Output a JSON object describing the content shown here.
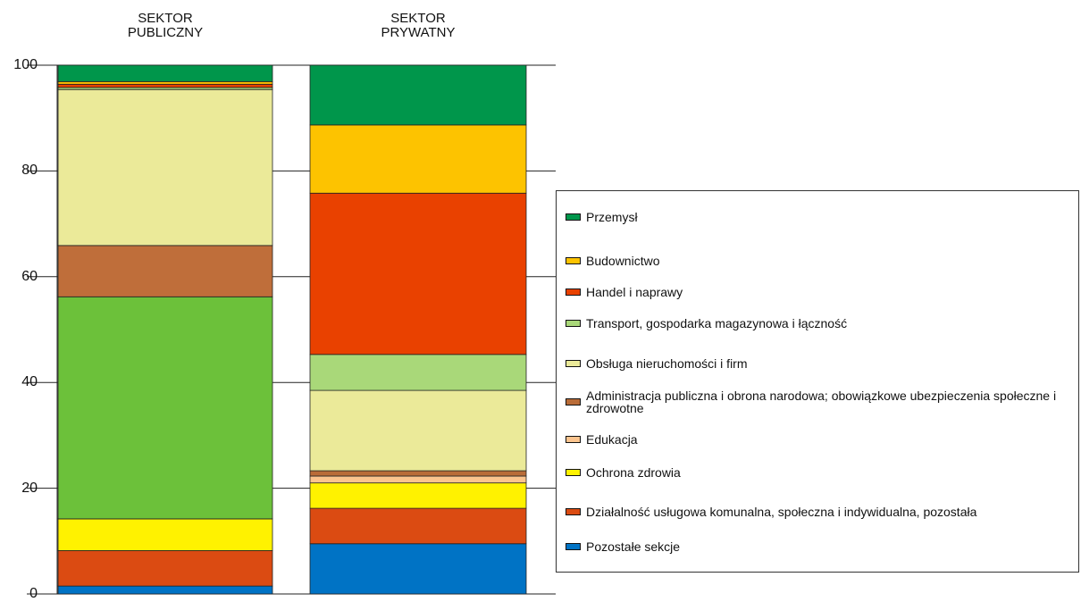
{
  "chart_data": {
    "type": "bar",
    "stacked": true,
    "categories": [
      "SEKTOR PUBLICZNY",
      "SEKTOR PRYWATNY"
    ],
    "ylim": [
      0,
      100
    ],
    "yticks": [
      0,
      20,
      40,
      60,
      80,
      100
    ],
    "grid": true,
    "series": [
      {
        "name": "Przemysł",
        "colors": [
          "#00964b",
          "#00964b"
        ],
        "values": [
          3.1,
          11.3
        ]
      },
      {
        "name": "Budownictwo",
        "colors": [
          "#fdc300",
          "#fdc300"
        ],
        "values": [
          0.5,
          12.9
        ]
      },
      {
        "name": "Handel i naprawy",
        "colors": [
          "#e94100",
          "#e94100"
        ],
        "values": [
          0.6,
          30.5
        ]
      },
      {
        "name": "Transport, gospodarka magazynowa i łączność",
        "colors": [
          "#a9d879",
          "#a9d879"
        ],
        "values": [
          0.4,
          6.8
        ]
      },
      {
        "name": "Obsługa nieruchomości i firm",
        "colors": [
          "#ebea99",
          "#ebea99"
        ],
        "values": [
          29.5,
          15.2
        ]
      },
      {
        "name": "Administracja publiczna i obrona narodowa; obowiązkowe ubezpieczenia społeczne i zdrowotne",
        "colors": [
          "#bf6e3a",
          "#b96c38"
        ],
        "values": [
          9.7,
          1.0
        ]
      },
      {
        "name": "Edukacja",
        "colors": [
          "#6cc13a",
          "#fcc48e"
        ],
        "values": [
          42,
          1.3
        ]
      },
      {
        "name": "Ochrona zdrowia",
        "colors": [
          "#fff200",
          "#fff200"
        ],
        "values": [
          6,
          4.8
        ]
      },
      {
        "name": "Działalność usługowa komunalna, społeczna i indywidualna, pozostała",
        "colors": [
          "#db4b12",
          "#db4b12"
        ],
        "values": [
          6.7,
          6.7
        ]
      },
      {
        "name": "Pozostałe sekcje",
        "colors": [
          "#0073c5",
          "#0073c5"
        ],
        "values": [
          1.5,
          9.5
        ]
      }
    ]
  }
}
